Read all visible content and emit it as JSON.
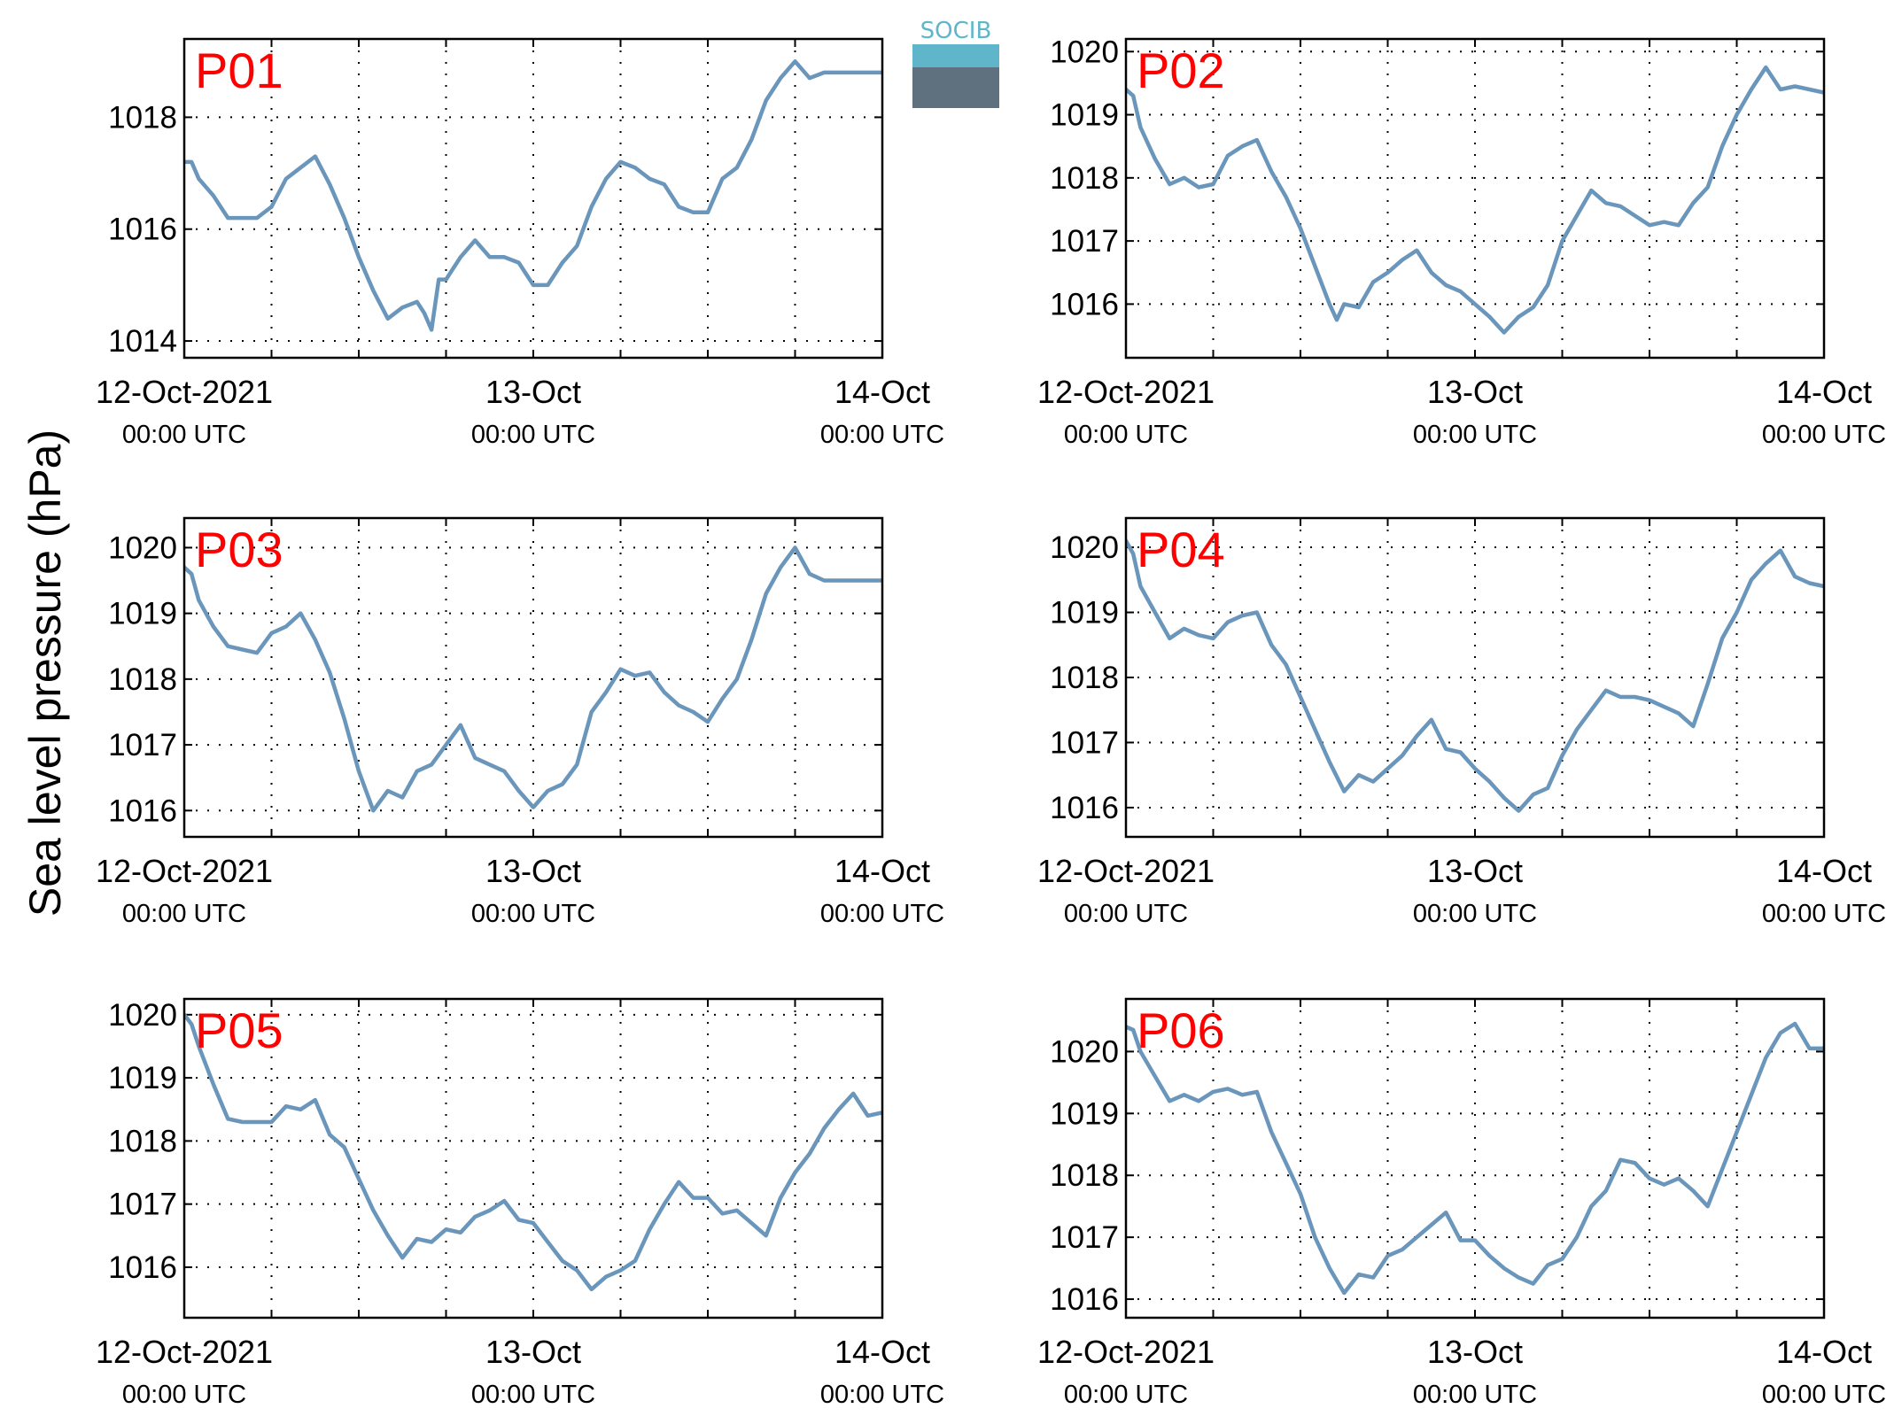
{
  "figure": {
    "ylabel": "Sea level pressure (hPa)",
    "logo_text": "SOCIB",
    "colors": {
      "line": "#6a96bb",
      "panel_label": "#ff0000",
      "axis": "#000000",
      "grid": "#000000"
    }
  },
  "x_ticks": [
    {
      "date": "12-Oct-2021",
      "time": "00:00 UTC"
    },
    {
      "date": "13-Oct",
      "time": "00:00 UTC"
    },
    {
      "date": "14-Oct",
      "time": "00:00 UTC"
    }
  ],
  "chart_data": [
    {
      "type": "line",
      "panel": "P01",
      "x_unit": "hours since 12-Oct-2021 00:00 UTC",
      "xlim": [
        0,
        48
      ],
      "ylim": [
        1013.7,
        1019.4
      ],
      "yticks": [
        1014,
        1016,
        1018
      ],
      "grid": true,
      "x": [
        0,
        0.5,
        1,
        2,
        3,
        4,
        5,
        6,
        7,
        8,
        9,
        10,
        11,
        12,
        13,
        14,
        15,
        16,
        16.5,
        17,
        17.5,
        18,
        19,
        20,
        21,
        22,
        23,
        24,
        25,
        26,
        27,
        28,
        29,
        30,
        31,
        32,
        33,
        34,
        35,
        36,
        37,
        38,
        39,
        40,
        41,
        42,
        43,
        44,
        45,
        46,
        47,
        48
      ],
      "y": [
        1017.2,
        1017.2,
        1016.9,
        1016.6,
        1016.2,
        1016.2,
        1016.2,
        1016.4,
        1016.9,
        1017.1,
        1017.3,
        1016.8,
        1016.2,
        1015.5,
        1014.9,
        1014.4,
        1014.6,
        1014.7,
        1014.5,
        1014.2,
        1015.1,
        1015.1,
        1015.5,
        1015.8,
        1015.5,
        1015.5,
        1015.4,
        1015.0,
        1015.0,
        1015.4,
        1015.7,
        1016.4,
        1016.9,
        1017.2,
        1017.1,
        1016.9,
        1016.8,
        1016.4,
        1016.3,
        1016.3,
        1016.9,
        1017.1,
        1017.6,
        1018.3,
        1018.7,
        1019.0,
        1018.7,
        1018.8,
        1018.8,
        1018.8,
        1018.8,
        1018.8
      ]
    },
    {
      "type": "line",
      "panel": "P02",
      "x_unit": "hours since 12-Oct-2021 00:00 UTC",
      "xlim": [
        0,
        48
      ],
      "ylim": [
        1015.15,
        1020.2
      ],
      "yticks": [
        1016,
        1017,
        1018,
        1019,
        1020
      ],
      "grid": true,
      "x": [
        0,
        0.5,
        1,
        2,
        3,
        4,
        5,
        6,
        7,
        8,
        9,
        10,
        11,
        12,
        13,
        14,
        14.5,
        15,
        16,
        17,
        18,
        19,
        20,
        21,
        22,
        23,
        24,
        25,
        26,
        27,
        28,
        29,
        30,
        31,
        32,
        33,
        34,
        35,
        36,
        37,
        38,
        39,
        40,
        41,
        42,
        43,
        44,
        45,
        46,
        47,
        48
      ],
      "y": [
        1019.4,
        1019.3,
        1018.8,
        1018.3,
        1017.9,
        1018.0,
        1017.85,
        1017.9,
        1018.35,
        1018.5,
        1018.6,
        1018.1,
        1017.7,
        1017.2,
        1016.6,
        1016.0,
        1015.75,
        1016.0,
        1015.95,
        1016.35,
        1016.5,
        1016.7,
        1016.85,
        1016.5,
        1016.3,
        1016.2,
        1016.0,
        1015.8,
        1015.55,
        1015.8,
        1015.95,
        1016.3,
        1017.0,
        1017.4,
        1017.8,
        1017.6,
        1017.55,
        1017.4,
        1017.25,
        1017.3,
        1017.25,
        1017.6,
        1017.85,
        1018.5,
        1019.0,
        1019.4,
        1019.75,
        1019.4,
        1019.45,
        1019.4,
        1019.35
      ]
    },
    {
      "type": "line",
      "panel": "P03",
      "x_unit": "hours since 12-Oct-2021 00:00 UTC",
      "xlim": [
        0,
        48
      ],
      "ylim": [
        1015.6,
        1020.45
      ],
      "yticks": [
        1016,
        1017,
        1018,
        1019,
        1020
      ],
      "grid": true,
      "x": [
        0,
        0.5,
        1,
        2,
        3,
        4,
        5,
        6,
        7,
        8,
        9,
        10,
        11,
        12,
        13,
        14,
        15,
        16,
        17,
        18,
        19,
        20,
        21,
        22,
        23,
        24,
        25,
        26,
        27,
        28,
        29,
        30,
        31,
        32,
        33,
        34,
        35,
        36,
        37,
        38,
        39,
        40,
        41,
        42,
        43,
        44,
        45,
        46,
        47,
        48
      ],
      "y": [
        1019.7,
        1019.6,
        1019.2,
        1018.8,
        1018.5,
        1018.45,
        1018.4,
        1018.7,
        1018.8,
        1019.0,
        1018.6,
        1018.1,
        1017.4,
        1016.6,
        1016.0,
        1016.3,
        1016.2,
        1016.6,
        1016.7,
        1017.0,
        1017.3,
        1016.8,
        1016.7,
        1016.6,
        1016.3,
        1016.05,
        1016.3,
        1016.4,
        1016.7,
        1017.5,
        1017.8,
        1018.15,
        1018.05,
        1018.1,
        1017.8,
        1017.6,
        1017.5,
        1017.35,
        1017.7,
        1018.0,
        1018.6,
        1019.3,
        1019.7,
        1020.0,
        1019.6,
        1019.5,
        1019.5,
        1019.5,
        1019.5,
        1019.5
      ]
    },
    {
      "type": "line",
      "panel": "P04",
      "x_unit": "hours since 12-Oct-2021 00:00 UTC",
      "xlim": [
        0,
        48
      ],
      "ylim": [
        1015.55,
        1020.45
      ],
      "yticks": [
        1016,
        1017,
        1018,
        1019,
        1020
      ],
      "grid": true,
      "x": [
        0,
        0.5,
        1,
        2,
        3,
        4,
        5,
        6,
        7,
        8,
        9,
        10,
        11,
        12,
        13,
        14,
        15,
        16,
        17,
        18,
        19,
        20,
        21,
        22,
        23,
        24,
        25,
        26,
        27,
        28,
        29,
        30,
        31,
        32,
        33,
        34,
        35,
        36,
        37,
        38,
        39,
        40,
        41,
        42,
        43,
        44,
        45,
        46,
        47,
        48
      ],
      "y": [
        1020.1,
        1019.9,
        1019.4,
        1019.0,
        1018.6,
        1018.75,
        1018.65,
        1018.6,
        1018.85,
        1018.95,
        1019.0,
        1018.5,
        1018.2,
        1017.7,
        1017.2,
        1016.7,
        1016.25,
        1016.5,
        1016.4,
        1016.6,
        1016.8,
        1017.1,
        1017.35,
        1016.9,
        1016.85,
        1016.6,
        1016.4,
        1016.15,
        1015.95,
        1016.2,
        1016.3,
        1016.8,
        1017.2,
        1017.5,
        1017.8,
        1017.7,
        1017.7,
        1017.65,
        1017.55,
        1017.45,
        1017.25,
        1017.9,
        1018.6,
        1019.0,
        1019.5,
        1019.75,
        1019.95,
        1019.55,
        1019.45,
        1019.4
      ]
    },
    {
      "type": "line",
      "panel": "P05",
      "x_unit": "hours since 12-Oct-2021 00:00 UTC",
      "xlim": [
        0,
        48
      ],
      "ylim": [
        1015.2,
        1020.25
      ],
      "yticks": [
        1016,
        1017,
        1018,
        1019,
        1020
      ],
      "grid": true,
      "x": [
        0,
        0.5,
        1,
        2,
        3,
        4,
        5,
        6,
        7,
        8,
        9,
        10,
        11,
        12,
        13,
        14,
        15,
        16,
        17,
        18,
        19,
        20,
        21,
        22,
        23,
        24,
        25,
        26,
        27,
        28,
        29,
        30,
        31,
        32,
        33,
        34,
        35,
        36,
        37,
        38,
        39,
        40,
        41,
        42,
        43,
        44,
        45,
        46,
        47,
        48
      ],
      "y": [
        1020.0,
        1019.85,
        1019.5,
        1018.9,
        1018.35,
        1018.3,
        1018.3,
        1018.3,
        1018.55,
        1018.5,
        1018.65,
        1018.1,
        1017.9,
        1017.4,
        1016.9,
        1016.5,
        1016.15,
        1016.45,
        1016.4,
        1016.6,
        1016.55,
        1016.8,
        1016.9,
        1017.05,
        1016.75,
        1016.7,
        1016.4,
        1016.1,
        1015.95,
        1015.65,
        1015.85,
        1015.95,
        1016.1,
        1016.6,
        1017.0,
        1017.35,
        1017.1,
        1017.1,
        1016.85,
        1016.9,
        1016.7,
        1016.5,
        1017.1,
        1017.5,
        1017.8,
        1018.2,
        1018.5,
        1018.75,
        1018.4,
        1018.45
      ]
    },
    {
      "type": "line",
      "panel": "P06",
      "x_unit": "hours since 12-Oct-2021 00:00 UTC",
      "xlim": [
        0,
        48
      ],
      "ylim": [
        1015.7,
        1020.85
      ],
      "yticks": [
        1016,
        1017,
        1018,
        1019,
        1020
      ],
      "grid": true,
      "x": [
        0,
        0.5,
        1,
        2,
        3,
        4,
        5,
        6,
        7,
        8,
        9,
        10,
        11,
        12,
        13,
        14,
        15,
        16,
        17,
        18,
        19,
        20,
        21,
        22,
        23,
        24,
        25,
        26,
        27,
        28,
        29,
        30,
        31,
        32,
        33,
        34,
        35,
        36,
        37,
        38,
        39,
        40,
        41,
        42,
        43,
        44,
        45,
        46,
        47,
        48
      ],
      "y": [
        1020.4,
        1020.35,
        1020.0,
        1019.6,
        1019.2,
        1019.3,
        1019.2,
        1019.35,
        1019.4,
        1019.3,
        1019.35,
        1018.7,
        1018.2,
        1017.7,
        1017.0,
        1016.5,
        1016.1,
        1016.4,
        1016.35,
        1016.7,
        1016.8,
        1017.0,
        1017.2,
        1017.4,
        1016.95,
        1016.95,
        1016.7,
        1016.5,
        1016.35,
        1016.25,
        1016.55,
        1016.65,
        1017.0,
        1017.5,
        1017.75,
        1018.25,
        1018.2,
        1017.95,
        1017.85,
        1017.95,
        1017.75,
        1017.5,
        1018.1,
        1018.7,
        1019.3,
        1019.9,
        1020.3,
        1020.45,
        1020.05,
        1020.05
      ]
    }
  ]
}
